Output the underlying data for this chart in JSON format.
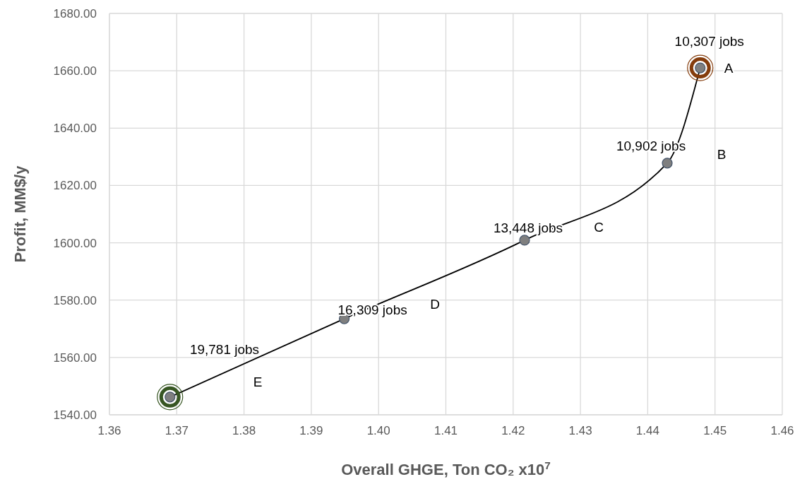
{
  "chart_data": {
    "type": "line",
    "xlabel": "Overall GHGE, Ton CO₂ x10$^{7}$",
    "ylabel": "Profit, MM$/y",
    "xlim": [
      1.36,
      1.46
    ],
    "xticks": [
      {
        "value": 1.36,
        "label": "1.36"
      },
      {
        "value": 1.37,
        "label": "1.37"
      },
      {
        "value": 1.38,
        "label": "1.38"
      },
      {
        "value": 1.39,
        "label": "1.39"
      },
      {
        "value": 1.4,
        "label": "1.40"
      },
      {
        "value": 1.41,
        "label": "1.41"
      },
      {
        "value": 1.42,
        "label": "1.42"
      },
      {
        "value": 1.43,
        "label": "1.43"
      },
      {
        "value": 1.44,
        "label": "1.44"
      },
      {
        "value": 1.45,
        "label": "1.45"
      },
      {
        "value": 1.46,
        "label": "1.46"
      }
    ],
    "ylim": [
      1540,
      1680
    ],
    "yticks": [
      {
        "value": 1540,
        "label": "1540.00"
      },
      {
        "value": 1560,
        "label": "1560.00"
      },
      {
        "value": 1580,
        "label": "1580.00"
      },
      {
        "value": 1600,
        "label": "1600.00"
      },
      {
        "value": 1620,
        "label": "1620.00"
      },
      {
        "value": 1640,
        "label": "1640.00"
      },
      {
        "value": 1660,
        "label": "1660.00"
      },
      {
        "value": 1680,
        "label": "1680.00"
      }
    ],
    "grid": true,
    "series": [
      {
        "type": "bubble",
        "color": "#843c0c",
        "x": [
          1.4478
        ],
        "values": [
          1661
        ],
        "sizes": [
          1
        ]
      },
      {
        "type": "bubble",
        "color": "#375623",
        "x": [
          1.369
        ],
        "values": [
          1546.2
        ],
        "sizes": [
          1
        ]
      },
      {
        "color": "#000000",
        "marker": "none",
        "x": [
          1.369,
          1.3949,
          1.4217,
          1.4429,
          1.4478
        ],
        "values": [
          1546.2,
          1573.5,
          1600.9,
          1627.8,
          1661
        ]
      },
      {
        "type": "scatter",
        "color": "#7f7f7f",
        "marker": "circle",
        "x": [
          1.369,
          1.3949,
          1.4217,
          1.4429,
          1.4478
        ],
        "values": [
          1546.2,
          1573.5,
          1600.9,
          1627.8,
          1661
        ]
      }
    ],
    "annotations": [
      {
        "text": "10,307 jobs",
        "x": 1.4478,
        "y": 1661
      },
      "A",
      {
        "text": "10,902 jobs",
        "x": 1.4429,
        "y": 1627.8
      },
      "B",
      {
        "text": "13,448 jobs",
        "x": 1.4217,
        "y": 1600.9
      },
      "C",
      {
        "text": "16,309 jobs",
        "x": 1.3949,
        "y": 1573.5
      },
      "D",
      "19,781 jobs",
      "E"
    ]
  }
}
